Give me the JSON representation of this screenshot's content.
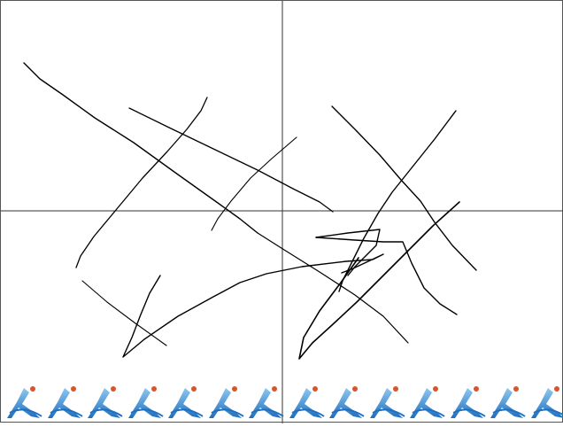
{
  "canvas": {
    "background": "#ffffff",
    "stroke_color": "#000000",
    "crosshair_color": "#333333",
    "divider_color": "#555555"
  },
  "icon_tray": {
    "icon_name": "figure-logo-icon",
    "count": 14,
    "colors": {
      "body_light": "#8ec7ef",
      "body_dark": "#1f6fbf",
      "accent": "#d8542a"
    }
  }
}
